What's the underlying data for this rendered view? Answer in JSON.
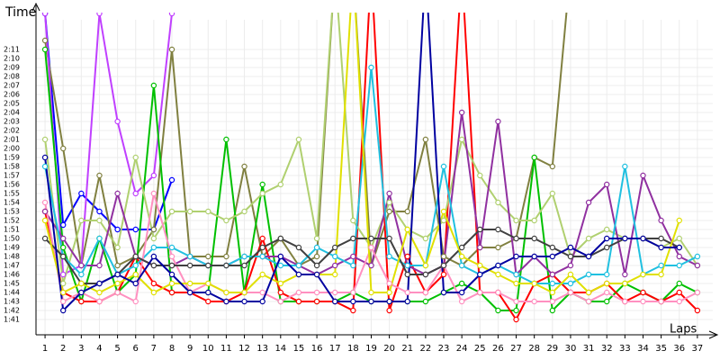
{
  "chart_data": {
    "type": "line",
    "title": "Time",
    "x_label": "Laps",
    "x": [
      1,
      2,
      3,
      4,
      5,
      6,
      7,
      8,
      9,
      10,
      11,
      12,
      13,
      14,
      15,
      16,
      17,
      18,
      19,
      20,
      21,
      22,
      23,
      24,
      25,
      26,
      27,
      28,
      29,
      30,
      31,
      32,
      33,
      34,
      35,
      36,
      37
    ],
    "xlim": [
      0.5,
      37.85
    ],
    "xticks": [
      1,
      2,
      3,
      4,
      5,
      6,
      7,
      8,
      9,
      10,
      11,
      12,
      13,
      14,
      15,
      16,
      17,
      18,
      19,
      20,
      21,
      22,
      23,
      24,
      25,
      26,
      27,
      28,
      29,
      30,
      31,
      32,
      33,
      34,
      35,
      36,
      37
    ],
    "ylim": [
      99.3,
      134.3
    ],
    "yticks": [
      {
        "value": 101,
        "label": "1:41"
      },
      {
        "value": 102,
        "label": "1:42"
      },
      {
        "value": 103,
        "label": "1:43"
      },
      {
        "value": 104,
        "label": "1:44"
      },
      {
        "value": 105,
        "label": "1:45"
      },
      {
        "value": 106,
        "label": "1:46"
      },
      {
        "value": 107,
        "label": "1:47"
      },
      {
        "value": 108,
        "label": "1:48"
      },
      {
        "value": 109,
        "label": "1:49"
      },
      {
        "value": 110,
        "label": "1:50"
      },
      {
        "value": 111,
        "label": "1:51"
      },
      {
        "value": 112,
        "label": "1:52"
      },
      {
        "value": 113,
        "label": "1:53"
      },
      {
        "value": 114,
        "label": "1:54"
      },
      {
        "value": 115,
        "label": "1:55"
      },
      {
        "value": 116,
        "label": "1:56"
      },
      {
        "value": 117,
        "label": "1:57"
      },
      {
        "value": 118,
        "label": "1:58"
      },
      {
        "value": 119,
        "label": "1:59"
      },
      {
        "value": 120,
        "label": "2:00"
      },
      {
        "value": 121,
        "label": "2:01"
      },
      {
        "value": 122,
        "label": "2:02"
      },
      {
        "value": 123,
        "label": "2:03"
      },
      {
        "value": 124,
        "label": "2:04"
      },
      {
        "value": 125,
        "label": "2:05"
      },
      {
        "value": 126,
        "label": "2:06"
      },
      {
        "value": 127,
        "label": "2:07"
      },
      {
        "value": 128,
        "label": "2:08"
      },
      {
        "value": 129,
        "label": "2:09"
      },
      {
        "value": 130,
        "label": "2:10"
      },
      {
        "value": 131,
        "label": "2:11"
      }
    ],
    "grid": true,
    "series": [
      {
        "color": "#0000ff",
        "values": [
          135,
          111.5,
          115,
          113,
          111,
          111,
          111,
          116.5,
          null,
          null,
          null,
          null,
          null,
          null,
          null,
          null,
          null,
          null,
          null,
          null,
          null,
          null,
          null,
          null,
          null,
          null,
          null,
          null,
          null,
          null,
          null,
          null,
          null,
          null,
          null,
          null,
          null
        ]
      },
      {
        "color": "#808040",
        "values": [
          132,
          120,
          107,
          117,
          107,
          108,
          111,
          131,
          108,
          108,
          108,
          118,
          108,
          110,
          107,
          108,
          140,
          140,
          107,
          113,
          113,
          121,
          108,
          107,
          109,
          109,
          110,
          119,
          118,
          140,
          null,
          null,
          null,
          null,
          null,
          null,
          null
        ]
      },
      {
        "color": "#c040ff",
        "values": [
          135,
          106,
          107,
          135,
          123,
          115,
          117,
          135,
          null,
          null,
          null,
          null,
          null,
          null,
          null,
          null,
          null,
          null,
          null,
          null,
          null,
          null,
          null,
          null,
          null,
          null,
          null,
          null,
          null,
          null,
          null,
          null,
          null,
          null,
          null,
          null,
          null
        ]
      },
      {
        "color": "#00c000",
        "values": [
          131,
          109,
          103,
          110,
          104,
          106,
          127,
          104,
          104,
          104,
          121,
          104,
          116,
          103,
          103,
          103,
          103,
          104,
          103,
          103,
          103,
          103,
          104,
          105,
          104,
          102,
          102,
          119,
          102,
          104,
          103,
          103,
          105,
          104,
          103,
          105,
          104
        ]
      },
      {
        "color": "#ff0000",
        "values": [
          113,
          104,
          103,
          103,
          104,
          108,
          105,
          104,
          104,
          103,
          103,
          104,
          110,
          104,
          103,
          103,
          103,
          102,
          140,
          102,
          108,
          104,
          106,
          140,
          104,
          104,
          101,
          105,
          106,
          104,
          104,
          105,
          103,
          104,
          103,
          104,
          102
        ]
      },
      {
        "color": "#b0d070",
        "values": [
          121,
          105,
          112,
          112,
          109,
          119,
          110,
          113,
          113,
          113,
          112,
          113,
          115,
          116,
          121,
          110,
          140,
          112,
          109,
          114,
          111,
          110,
          112,
          121,
          117,
          114,
          112,
          112,
          115,
          108,
          110,
          111,
          110,
          110,
          109,
          110,
          107
        ]
      },
      {
        "color": "#9030a0",
        "values": [
          113,
          110,
          107,
          107,
          115,
          108,
          107,
          107,
          108,
          107,
          107,
          108,
          108,
          108,
          107,
          106,
          107,
          108,
          107,
          115,
          107,
          106,
          107,
          124,
          109,
          123,
          106,
          108,
          106,
          107,
          114,
          116,
          106,
          117,
          112,
          108,
          107
        ]
      },
      {
        "color": "#20c0e0",
        "values": [
          118,
          108,
          106,
          110,
          106,
          107,
          109,
          109,
          108,
          107,
          107,
          108,
          108,
          107,
          107,
          109,
          108,
          107,
          129,
          108,
          107,
          107,
          118,
          107,
          106,
          107,
          106,
          105,
          105,
          105,
          106,
          106,
          118,
          106,
          107,
          107,
          108
        ]
      },
      {
        "color": "#ff90c0",
        "values": [
          114,
          103,
          104,
          103,
          104,
          103,
          115,
          108,
          104,
          105,
          104,
          104,
          104,
          103,
          104,
          104,
          104,
          104,
          109,
          105,
          104,
          104,
          107,
          103,
          104,
          104,
          103,
          103,
          103,
          104,
          103,
          104,
          103,
          103,
          103,
          103,
          104
        ]
      },
      {
        "color": "#404040",
        "values": [
          110,
          108,
          105,
          105,
          106,
          108,
          107,
          107,
          107,
          107,
          107,
          107,
          109,
          110,
          109,
          107,
          109,
          110,
          110,
          110,
          106,
          106,
          107,
          109,
          111,
          111,
          110,
          110,
          109,
          108,
          108,
          109,
          110,
          110,
          110,
          109,
          null
        ]
      },
      {
        "color": "#e0e000",
        "values": [
          112,
          104,
          105,
          104,
          105,
          106,
          104,
          105,
          105,
          105,
          104,
          104,
          106,
          105,
          106,
          106,
          106,
          140,
          104,
          104,
          111,
          107,
          113,
          108,
          107,
          106,
          105,
          105,
          104,
          106,
          104,
          105,
          105,
          106,
          106,
          112,
          null
        ]
      },
      {
        "color": "#0000a0",
        "values": [
          119,
          102,
          104,
          105,
          106,
          105,
          108,
          106,
          104,
          104,
          103,
          103,
          103,
          108,
          106,
          106,
          103,
          103,
          103,
          103,
          103,
          140,
          104,
          104,
          106,
          107,
          108,
          108,
          108,
          109,
          108,
          110,
          110,
          110,
          109,
          109,
          null
        ]
      }
    ]
  }
}
